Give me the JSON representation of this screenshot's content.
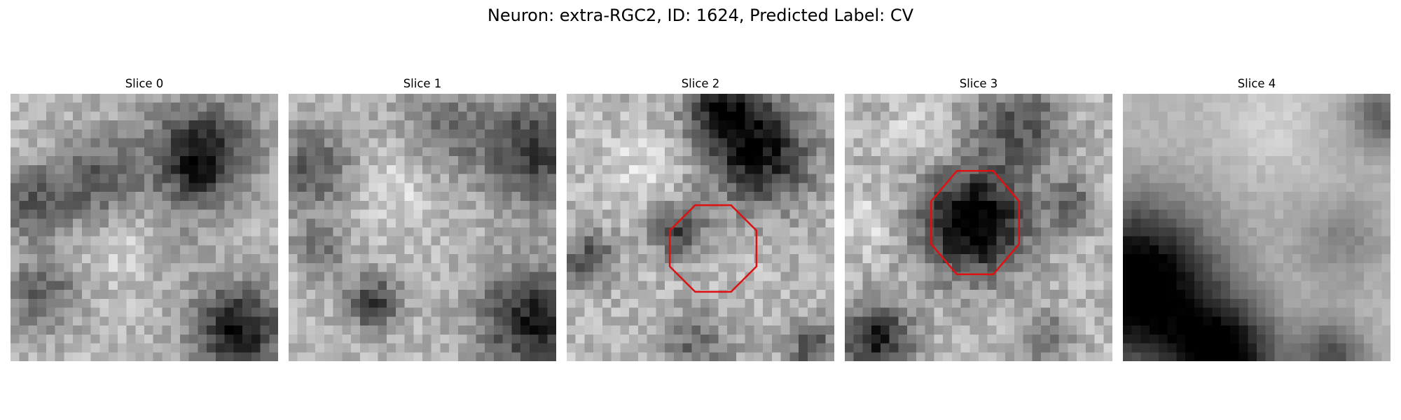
{
  "figure": {
    "title": "Neuron: extra-RGC2, ID: 1624, Predicted Label: CV"
  },
  "colors": {
    "contour": "#e01010",
    "background": "#ffffff",
    "colormap": "gray"
  },
  "panels": [
    {
      "title": "Slice 0",
      "has_contour": false
    },
    {
      "title": "Slice 1",
      "has_contour": false
    },
    {
      "title": "Slice 2",
      "has_contour": true
    },
    {
      "title": "Slice 3",
      "has_contour": true
    },
    {
      "title": "Slice 4",
      "has_contour": false
    }
  ]
}
